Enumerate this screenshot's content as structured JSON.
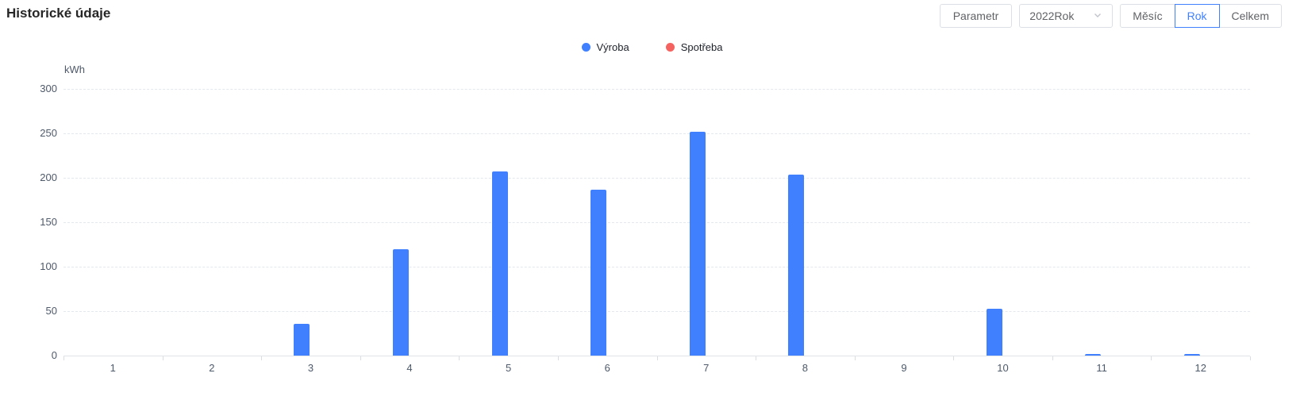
{
  "header": {
    "title": "Historické údaje",
    "controls": {
      "parametr_label": "Parametr",
      "year_select": {
        "value": "2022Rok",
        "icon": "chevron-down-icon"
      },
      "segments": [
        {
          "label": "Měsíc",
          "active": false
        },
        {
          "label": "Rok",
          "active": true
        },
        {
          "label": "Celkem",
          "active": false
        }
      ]
    }
  },
  "legend": [
    {
      "label": "Výroba",
      "color": "#4080FF"
    },
    {
      "label": "Spotřeba",
      "color": "#F56360"
    }
  ],
  "chart_data": {
    "type": "bar",
    "title": "Historické údaje",
    "unit_label": "kWh",
    "categories": [
      "1",
      "2",
      "3",
      "4",
      "5",
      "6",
      "7",
      "8",
      "9",
      "10",
      "11",
      "12"
    ],
    "series": [
      {
        "name": "Výroba",
        "color": "#4080FF",
        "values": [
          0,
          0,
          36,
          120,
          207,
          187,
          252,
          204,
          0,
          53,
          2,
          2
        ]
      },
      {
        "name": "Spotřeba",
        "color": "#F56360",
        "values": [
          0,
          0,
          0,
          0,
          0,
          0,
          0,
          0,
          0,
          0,
          0,
          0
        ]
      }
    ],
    "xlabel": "",
    "ylabel": "kWh",
    "ylim": [
      0,
      300
    ],
    "yticks": [
      0,
      50,
      100,
      150,
      200,
      250,
      300
    ],
    "grid": "horizontal-dashed",
    "legend_position": "top-center"
  },
  "colors": {
    "accent_blue": "#4080FF",
    "series_red": "#F56360",
    "border_gray": "#DCDFE6",
    "text_gray": "#606266",
    "axis_text": "#4E5969",
    "grid_gray": "#E4E7ED"
  }
}
